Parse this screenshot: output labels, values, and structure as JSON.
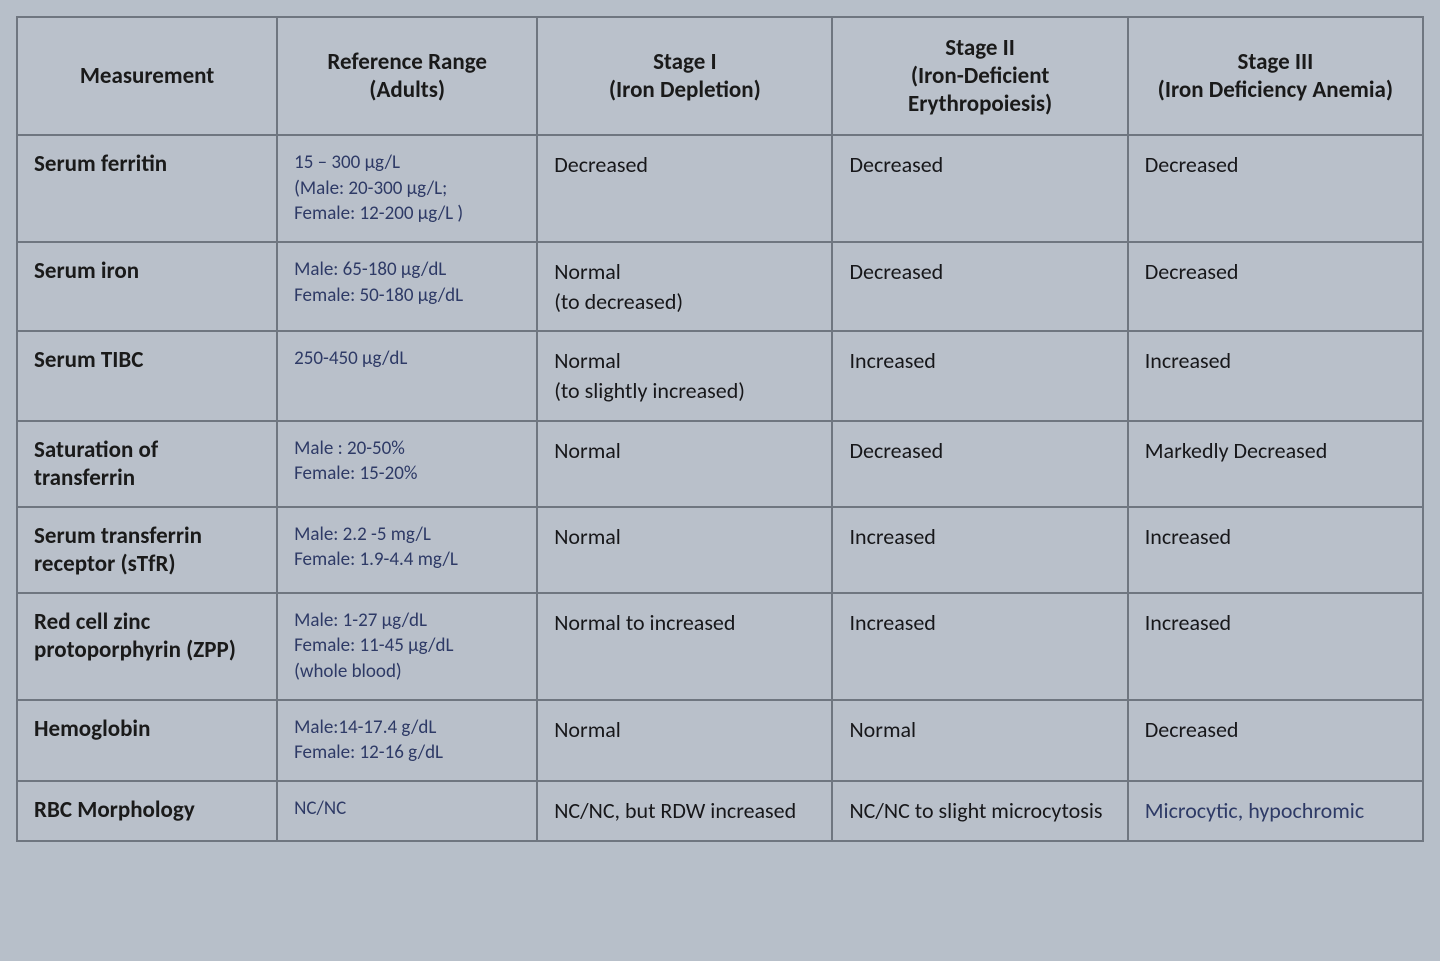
{
  "table": {
    "type": "table",
    "background_color": "#b9c0ca",
    "border_color": "#6f7680",
    "header_font_color": "#1a1a1a",
    "header_fontsize_pt": 17,
    "measurement_font_color": "#1a1a1a",
    "measurement_fontsize_pt": 17,
    "reference_font_color": "#2e3a66",
    "reference_fontsize_pt": 14,
    "stage_font_color": "#17171a",
    "stage_fontsize_pt": 16,
    "stage_alt_font_color": "#2e3a66",
    "column_widths_pct": [
      18.5,
      18.5,
      21,
      21,
      21
    ],
    "columns": [
      {
        "line1": "Measurement",
        "line2": ""
      },
      {
        "line1": "Reference Range",
        "line2": "(Adults)"
      },
      {
        "line1": "Stage I",
        "line2": "(Iron Depletion)"
      },
      {
        "line1": "Stage II",
        "line2": "(Iron-Deficient Erythropoiesis)"
      },
      {
        "line1": "Stage III",
        "line2": "(Iron Deficiency Anemia)"
      }
    ],
    "rows": [
      {
        "measurement": "Serum ferritin",
        "reference": "15 – 300 µg/L\n(Male: 20-300 µg/L;\nFemale: 12-200 µg/L )",
        "stage1": "Decreased",
        "stage2": "Decreased",
        "stage3": "Decreased"
      },
      {
        "measurement": "Serum iron",
        "reference": "Male: 65-180 µg/dL\nFemale: 50-180 µg/dL",
        "stage1": "Normal\n(to decreased)",
        "stage2": "Decreased",
        "stage3": "Decreased"
      },
      {
        "measurement": "Serum TIBC",
        "reference": "250-450 µg/dL",
        "stage1": "Normal\n(to slightly increased)",
        "stage2": "Increased",
        "stage3": "Increased"
      },
      {
        "measurement": "Saturation of transferrin",
        "reference": "Male : 20-50%\nFemale: 15-20%",
        "stage1": "Normal",
        "stage2": "Decreased",
        "stage3": "Markedly Decreased"
      },
      {
        "measurement": "Serum transferrin receptor (sTfR)",
        "reference": "Male: 2.2 -5 mg/L\nFemale: 1.9-4.4 mg/L",
        "stage1": "Normal",
        "stage2": "Increased",
        "stage3": "Increased"
      },
      {
        "measurement": "Red cell zinc protoporphyrin (ZPP)",
        "reference": "Male: 1-27 µg/dL\nFemale: 11-45 µg/dL\n(whole blood)",
        "stage1": "Normal to increased",
        "stage2": "Increased",
        "stage3": "Increased"
      },
      {
        "measurement": "Hemoglobin",
        "reference": "Male:14-17.4 g/dL\nFemale: 12-16 g/dL",
        "stage1": "Normal",
        "stage2": "Normal",
        "stage3": "Decreased"
      },
      {
        "measurement": "RBC Morphology",
        "reference": "NC/NC",
        "stage1": "NC/NC, but RDW increased",
        "stage2": "NC/NC to slight microcytosis",
        "stage3": "Microcytic, hypochromic",
        "stage3_alt_color": true
      }
    ]
  }
}
